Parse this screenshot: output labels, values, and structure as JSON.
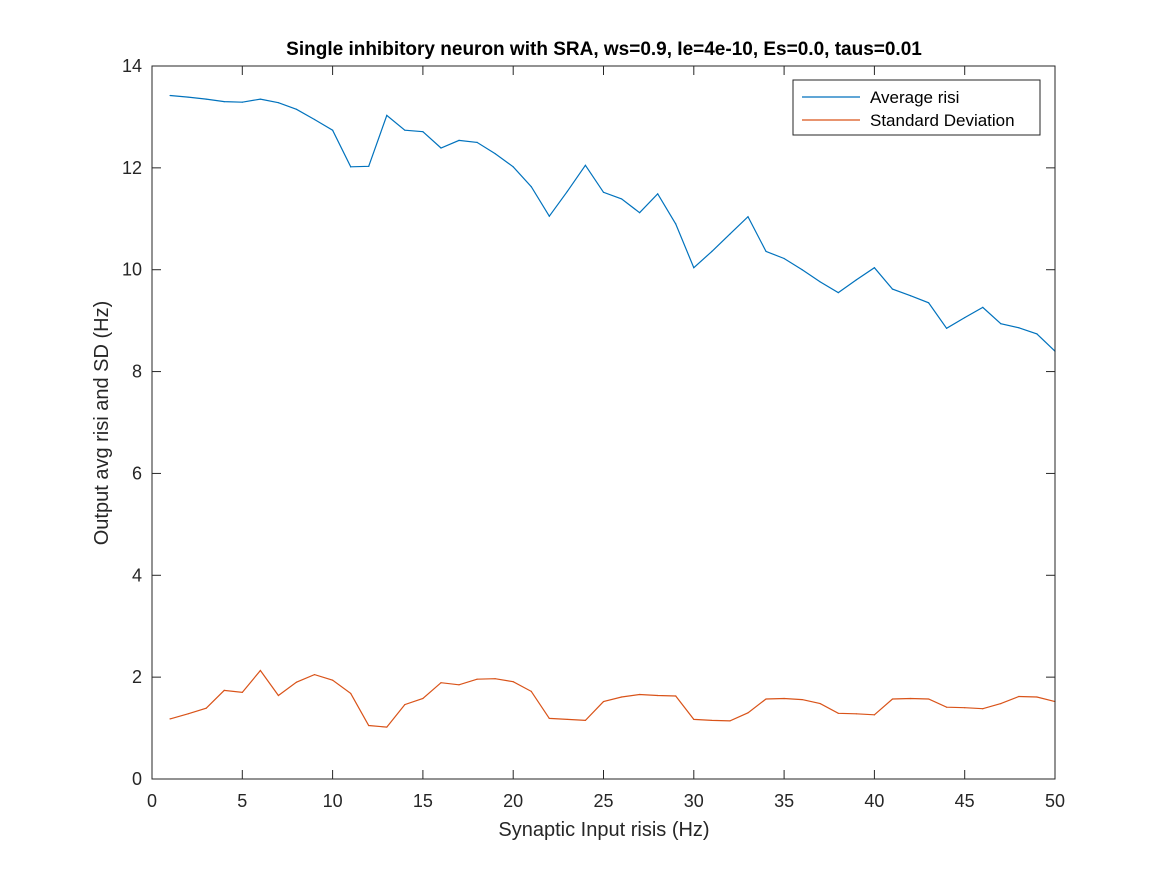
{
  "chart_data": {
    "type": "line",
    "title": "Single inhibitory neuron with SRA, ws=0.9, Ie=4e-10, Es=0.0, taus=0.01",
    "xlabel": "Synaptic Input risis (Hz)",
    "ylabel": "Output avg risi and SD (Hz)",
    "xlim": [
      0,
      50
    ],
    "ylim": [
      0,
      14
    ],
    "xticks": [
      0,
      5,
      10,
      15,
      20,
      25,
      30,
      35,
      40,
      45,
      50
    ],
    "yticks": [
      0,
      2,
      4,
      6,
      8,
      10,
      12,
      14
    ],
    "grid": false,
    "legend_position": "top-right",
    "x": [
      1,
      2,
      3,
      4,
      5,
      6,
      7,
      8,
      9,
      10,
      11,
      12,
      13,
      14,
      15,
      16,
      17,
      18,
      19,
      20,
      21,
      22,
      23,
      24,
      25,
      26,
      27,
      28,
      29,
      30,
      31,
      32,
      33,
      34,
      35,
      36,
      37,
      38,
      39,
      40,
      41,
      42,
      43,
      44,
      45,
      46,
      47,
      48,
      49,
      50
    ],
    "series": [
      {
        "name": "Average risi",
        "color": "#0072BD",
        "values": [
          13.42,
          13.39,
          13.35,
          13.3,
          13.29,
          13.35,
          13.28,
          13.15,
          12.95,
          12.74,
          12.02,
          12.03,
          13.03,
          12.74,
          12.71,
          12.39,
          12.54,
          12.5,
          12.28,
          12.02,
          11.63,
          11.05,
          11.54,
          12.05,
          11.52,
          11.39,
          11.12,
          11.49,
          10.9,
          10.04,
          10.36,
          10.7,
          11.04,
          10.36,
          10.22,
          10.0,
          9.76,
          9.55,
          9.8,
          10.04,
          9.62,
          9.49,
          9.35,
          8.85,
          9.06,
          9.26,
          8.94,
          8.86,
          8.74,
          8.4
        ]
      },
      {
        "name": "Standard Deviation",
        "color": "#D95319",
        "values": [
          1.18,
          1.28,
          1.39,
          1.74,
          1.7,
          2.13,
          1.64,
          1.9,
          2.05,
          1.94,
          1.68,
          1.05,
          1.02,
          1.46,
          1.58,
          1.89,
          1.85,
          1.96,
          1.97,
          1.91,
          1.72,
          1.19,
          1.17,
          1.15,
          1.52,
          1.61,
          1.66,
          1.64,
          1.63,
          1.17,
          1.15,
          1.14,
          1.3,
          1.57,
          1.58,
          1.56,
          1.48,
          1.29,
          1.28,
          1.26,
          1.57,
          1.58,
          1.57,
          1.41,
          1.4,
          1.38,
          1.48,
          1.62,
          1.61,
          1.52
        ]
      }
    ]
  }
}
